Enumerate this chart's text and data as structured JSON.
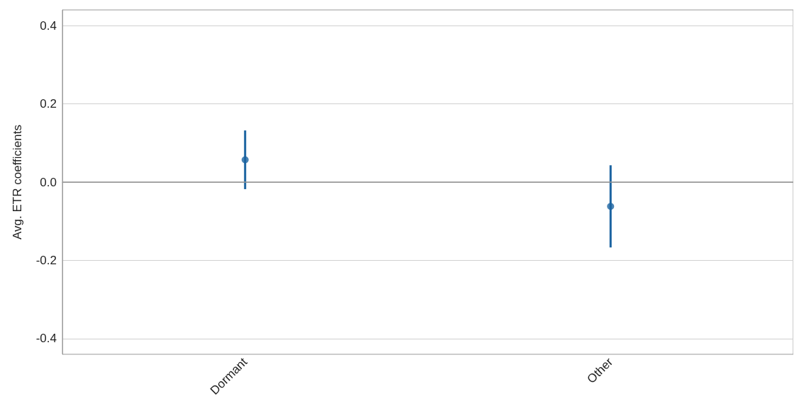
{
  "chart_data": {
    "type": "scatter",
    "ylabel": "Avg. ETR coefficients",
    "categories": [
      "Dormant",
      "Other"
    ],
    "series": [
      {
        "color": "#1a63a0",
        "values": [
          0.057,
          -0.062
        ],
        "errors": [
          [
            -0.018,
            0.132
          ],
          [
            -0.167,
            0.043
          ]
        ]
      }
    ],
    "ylim": [
      -0.44,
      0.44
    ],
    "yticks": [
      {
        "value": -0.4,
        "label": "-0.4"
      },
      {
        "value": -0.2,
        "label": "-0.2"
      },
      {
        "value": 0,
        "label": "0.0"
      },
      {
        "value": 0.2,
        "label": "0.2"
      },
      {
        "value": 0.4,
        "label": "0.4"
      }
    ],
    "grid": "y",
    "marker": "circle",
    "ref_lines": [
      {
        "axis": "y",
        "value": 0,
        "color": "#999999"
      }
    ]
  }
}
